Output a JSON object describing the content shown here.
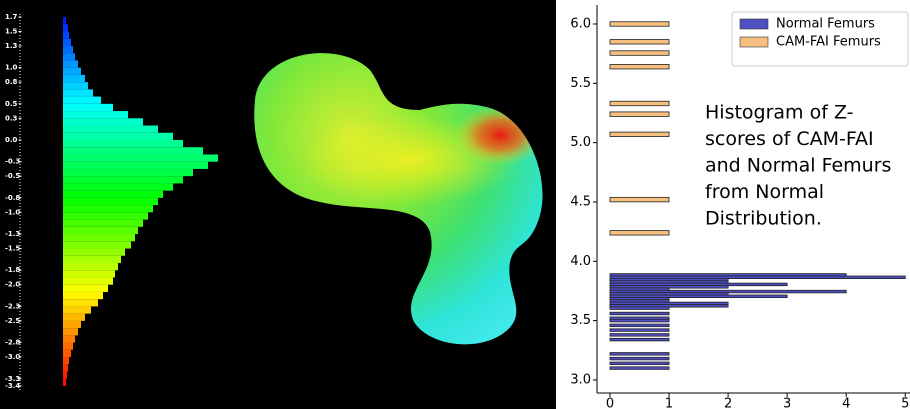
{
  "chart_data": [
    {
      "type": "colorbar_histogram",
      "ylim": [
        -3.4,
        1.7
      ],
      "yticks": [
        1.7,
        1.5,
        1.3,
        {
          "value": 1.0,
          "label": "1.0"
        },
        0.8,
        0.5,
        0.3,
        {
          "value": 0,
          "label": "0.0"
        },
        -0.3,
        -0.5,
        -0.8,
        {
          "value": -1.0,
          "label": "-1.0"
        },
        -1.3,
        -1.5,
        -1.8,
        {
          "value": -2.0,
          "label": "-2.0"
        },
        -2.3,
        -2.5,
        -2.8,
        {
          "value": -3.0,
          "label": "-3.0"
        },
        -3.3,
        -3.4
      ],
      "bins": [
        -3.4,
        -3.3,
        -3.2,
        -3.1,
        -3.0,
        -2.9,
        -2.8,
        -2.7,
        -2.6,
        -2.5,
        -2.4,
        -2.3,
        -2.2,
        -2.1,
        -2.0,
        -1.9,
        -1.8,
        -1.7,
        -1.6,
        -1.5,
        -1.4,
        -1.3,
        -1.2,
        -1.1,
        -1.0,
        -0.9,
        -0.8,
        -0.7,
        -0.6,
        -0.5,
        -0.4,
        -0.3,
        -0.2,
        -0.1,
        0.0,
        0.1,
        0.2,
        0.3,
        0.4,
        0.5,
        0.6,
        0.7,
        0.8,
        0.9,
        1.0,
        1.1,
        1.2,
        1.3,
        1.4,
        1.5,
        1.6,
        1.7
      ],
      "counts": [
        3,
        4,
        5,
        6,
        8,
        10,
        12,
        15,
        18,
        22,
        28,
        35,
        40,
        45,
        50,
        52,
        55,
        58,
        62,
        68,
        72,
        75,
        80,
        85,
        90,
        95,
        100,
        110,
        120,
        130,
        145,
        155,
        140,
        120,
        110,
        95,
        80,
        65,
        50,
        38,
        30,
        25,
        22,
        18,
        15,
        12,
        10,
        8,
        6,
        5,
        3
      ]
    },
    {
      "type": "barh_histogram",
      "annotation": [
        "Histogram of  Z-",
        "scores of CAM-FAI",
        "and Normal Femurs",
        "from Normal",
        "Distribution."
      ],
      "xlim": [
        -0.22,
        5.08
      ],
      "xticks": [
        0,
        1,
        2,
        3,
        4,
        5
      ],
      "ylim": [
        2.89,
        6.16
      ],
      "yticks": [
        {
          "value": 3.0,
          "label": "3.0"
        },
        3.5,
        {
          "value": 4.0,
          "label": "4.0"
        },
        4.5,
        {
          "value": 5.0,
          "label": "5.0"
        },
        5.5,
        {
          "value": 6.0,
          "label": "6.0"
        }
      ],
      "legend": "upper right",
      "series": [
        {
          "name": "Normal Femurs",
          "color": "#4f4fc4",
          "y": [
            3.885,
            3.865,
            3.845,
            3.825,
            3.805,
            3.785,
            3.765,
            3.745,
            3.725,
            3.705,
            3.685,
            3.665,
            3.645,
            3.625,
            3.605,
            3.56,
            3.52,
            3.5,
            3.46,
            3.42,
            3.38,
            3.34,
            3.22,
            3.18,
            3.14,
            3.1
          ],
          "values": [
            4,
            5,
            2,
            2,
            3,
            2,
            1,
            4,
            2,
            3,
            1,
            1,
            2,
            2,
            1,
            1,
            1,
            1,
            1,
            1,
            1,
            1,
            1,
            1,
            1,
            1
          ]
        },
        {
          "name": "CAM-FAI Femurs",
          "color": "#f4bf7f",
          "y": [
            6.0,
            5.85,
            5.755,
            5.64,
            5.33,
            5.24,
            5.07,
            4.52,
            4.24
          ],
          "values": [
            1,
            1,
            1,
            1,
            1,
            1,
            1,
            1,
            1
          ]
        }
      ]
    }
  ]
}
